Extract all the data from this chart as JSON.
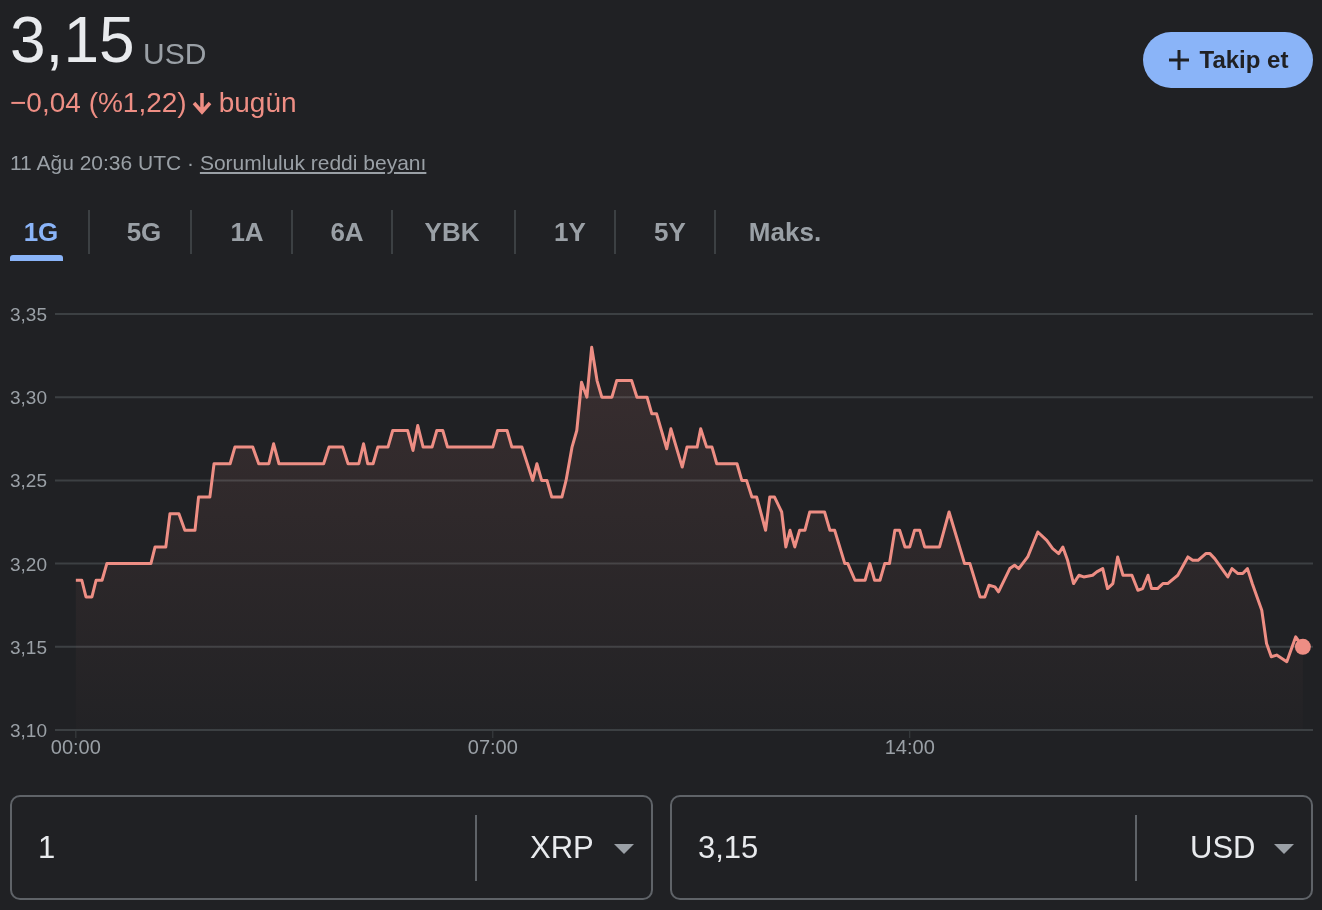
{
  "chart_data": {
    "type": "area",
    "title": "3,15",
    "annotations": [
      "USD",
      "−0,04 (%1,22)",
      "bugün",
      "11 Ağu 20:36 UTC · ",
      "Sorumluluk reddi beyanı",
      "1G",
      "5G",
      "1A",
      "6A",
      "YBK",
      "1Y",
      "5Y",
      "Maks.",
      "Takip et",
      "1",
      "XRP",
      "3,15",
      "USD"
    ],
    "x": [
      0,
      0.1,
      0.17,
      0.27,
      0.34,
      0.44,
      0.52,
      1.26,
      1.33,
      1.51,
      1.58,
      1.73,
      1.83,
      2.0,
      2.06,
      2.25,
      2.32,
      2.59,
      2.67,
      2.97,
      3.07,
      3.24,
      3.32,
      3.41,
      4.16,
      4.25,
      4.48,
      4.57,
      4.75,
      4.83,
      4.9,
      4.99,
      5.07,
      5.24,
      5.32,
      5.57,
      5.66,
      5.74,
      5.83,
      5.98,
      6.06,
      6.16,
      6.24,
      7.0,
      7.08,
      7.24,
      7.32,
      7.49,
      7.67,
      7.74,
      7.82,
      7.91,
      7.99,
      8.16,
      8.23,
      8.33,
      8.41,
      8.49,
      8.58,
      8.66,
      8.75,
      8.83,
      9.0,
      9.08,
      9.33,
      9.42,
      9.59,
      9.67,
      9.75,
      9.92,
      9.99,
      10.18,
      10.26,
      10.43,
      10.49,
      10.59,
      10.68,
      10.76,
      11.1,
      11.18,
      11.26,
      11.35,
      11.43,
      11.58,
      11.65,
      11.73,
      11.85,
      11.92,
      11.99,
      12.07,
      12.15,
      12.24,
      12.32,
      12.57,
      12.66,
      12.74,
      12.91,
      12.96,
      13.08,
      13.25,
      13.33,
      13.41,
      13.5,
      13.58,
      13.66,
      13.75,
      13.83,
      13.92,
      14.0,
      14.08,
      14.17,
      14.25,
      14.5,
      14.66,
      14.92,
      15.01,
      15.18,
      15.26,
      15.33,
      15.43,
      15.49,
      15.68,
      15.76,
      15.83,
      15.98,
      16.15,
      16.3,
      16.4,
      16.5,
      16.57,
      16.65,
      16.75,
      16.84,
      16.92,
      17.07,
      17.14,
      17.24,
      17.32,
      17.41,
      17.49,
      17.58,
      17.73,
      17.83,
      17.91,
      18.0,
      18.06,
      18.16,
      18.25,
      18.33,
      18.5,
      18.67,
      18.75,
      18.84,
      18.97,
      19.04,
      19.12,
      19.24,
      19.34,
      19.41,
      19.51,
      19.59,
      19.67,
      19.75,
      19.91,
      19.99,
      20.07,
      20.16,
      20.33,
      20.48,
      20.6
    ],
    "values": [
      3.19,
      3.19,
      3.18,
      3.18,
      3.19,
      3.19,
      3.2,
      3.2,
      3.21,
      3.21,
      3.23,
      3.23,
      3.22,
      3.22,
      3.24,
      3.24,
      3.26,
      3.26,
      3.27,
      3.27,
      3.26,
      3.26,
      3.272,
      3.26,
      3.26,
      3.27,
      3.27,
      3.26,
      3.26,
      3.272,
      3.26,
      3.26,
      3.27,
      3.27,
      3.28,
      3.28,
      3.268,
      3.283,
      3.27,
      3.27,
      3.28,
      3.28,
      3.27,
      3.27,
      3.28,
      3.28,
      3.27,
      3.27,
      3.25,
      3.26,
      3.25,
      3.25,
      3.24,
      3.24,
      3.25,
      3.27,
      3.28,
      3.309,
      3.3,
      3.33,
      3.31,
      3.3,
      3.3,
      3.31,
      3.31,
      3.3,
      3.3,
      3.29,
      3.29,
      3.269,
      3.281,
      3.258,
      3.27,
      3.27,
      3.281,
      3.27,
      3.27,
      3.26,
      3.26,
      3.25,
      3.25,
      3.24,
      3.24,
      3.22,
      3.24,
      3.24,
      3.231,
      3.21,
      3.22,
      3.21,
      3.22,
      3.22,
      3.231,
      3.231,
      3.22,
      3.22,
      3.2,
      3.2,
      3.19,
      3.19,
      3.2,
      3.19,
      3.19,
      3.2,
      3.2,
      3.22,
      3.22,
      3.21,
      3.21,
      3.22,
      3.22,
      3.21,
      3.21,
      3.231,
      3.2,
      3.2,
      3.18,
      3.18,
      3.187,
      3.186,
      3.183,
      3.197,
      3.199,
      3.197,
      3.204,
      3.219,
      3.214,
      3.209,
      3.206,
      3.21,
      3.202,
      3.188,
      3.193,
      3.192,
      3.193,
      3.195,
      3.197,
      3.185,
      3.188,
      3.204,
      3.193,
      3.193,
      3.184,
      3.185,
      3.193,
      3.185,
      3.185,
      3.188,
      3.188,
      3.193,
      3.204,
      3.202,
      3.202,
      3.206,
      3.206,
      3.203,
      3.197,
      3.192,
      3.197,
      3.194,
      3.194,
      3.197,
      3.188,
      3.172,
      3.152,
      3.144,
      3.145,
      3.141,
      3.156,
      3.15
    ],
    "color": "#ee8e84",
    "xlim": [
      -0.35,
      20.77
    ],
    "xticks": [
      {
        "value": 0,
        "label": "00:00"
      },
      {
        "value": 7,
        "label": "07:00"
      },
      {
        "value": 14,
        "label": "14:00"
      }
    ],
    "ylim": [
      3.1,
      3.35
    ],
    "yticks": [
      {
        "value": 3.1,
        "label": "3,10"
      },
      {
        "value": 3.15,
        "label": "3,15"
      },
      {
        "value": 3.2,
        "label": "3,20"
      },
      {
        "value": 3.25,
        "label": "3,25"
      },
      {
        "value": 3.3,
        "label": "3,30"
      },
      {
        "value": 3.35,
        "label": "3,35"
      }
    ],
    "grid": "y"
  }
}
